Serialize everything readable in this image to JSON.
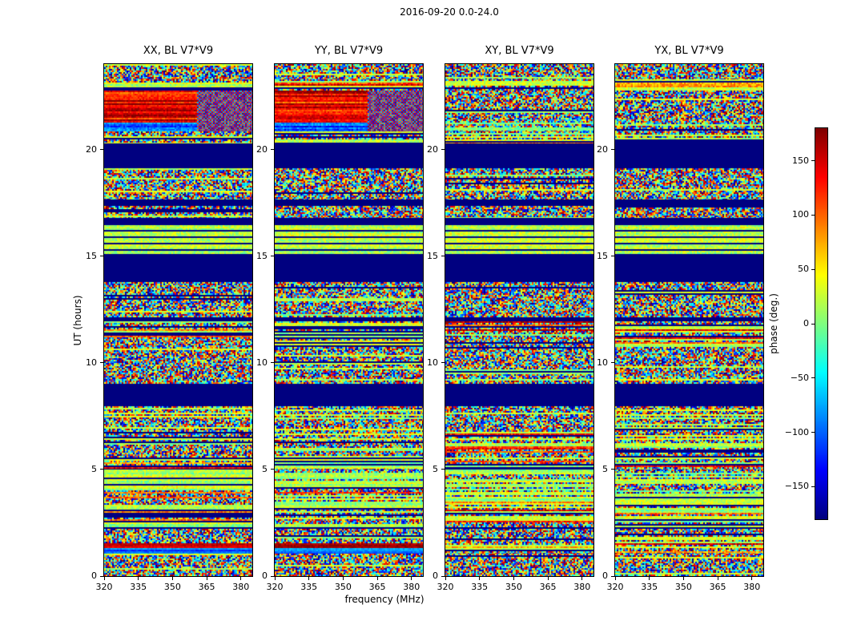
{
  "figure": {
    "title": "2016-09-20 0.0-24.0"
  },
  "chart_data": {
    "type": "heatmap",
    "title": "2016-09-20 0.0-24.0",
    "xlabel": "frequency (MHz)",
    "ylabel": "UT (hours)",
    "x_range_mhz": [
      320,
      385
    ],
    "y_range_hours": [
      0,
      24
    ],
    "x_ticks": [
      320,
      335,
      350,
      365,
      380
    ],
    "y_ticks": [
      0,
      5,
      10,
      15,
      20
    ],
    "panels": [
      {
        "title": "XX, BL V7*V9",
        "band_set": "a"
      },
      {
        "title": "YY, BL V7*V9",
        "band_set": "a"
      },
      {
        "title": "XY, BL V7*V9",
        "band_set": "b"
      },
      {
        "title": "YX, BL V7*V9",
        "band_set": "b"
      }
    ],
    "colorbar": {
      "label": "phase (deg.)",
      "colormap": "jet",
      "range": [
        -180,
        180
      ],
      "ticks": [
        150,
        100,
        50,
        0,
        -50,
        -100,
        -150
      ],
      "tick_labels": [
        "150",
        "100",
        "50",
        "0",
        "−50",
        "−100",
        "−150"
      ]
    },
    "band_sets": {
      "a": [
        {
          "u0": 23.3,
          "u1": 24.0,
          "kind": "noise"
        },
        {
          "u0": 22.75,
          "u1": 23.3,
          "kind": "stripmix"
        },
        {
          "u0": 21.25,
          "u1": 22.75,
          "kind": "hot"
        },
        {
          "u0": 20.85,
          "u1": 21.25,
          "kind": "cold"
        },
        {
          "u0": 20.3,
          "u1": 20.85,
          "kind": "stripmix"
        },
        {
          "u0": 19.1,
          "u1": 20.3,
          "kind": "navy"
        },
        {
          "u0": 17.65,
          "u1": 19.1,
          "kind": "noise"
        },
        {
          "u0": 17.35,
          "u1": 17.65,
          "kind": "navy"
        },
        {
          "u0": 16.8,
          "u1": 17.35,
          "kind": "noise"
        },
        {
          "u0": 16.45,
          "u1": 16.8,
          "kind": "navy"
        },
        {
          "u0": 15.1,
          "u1": 16.45,
          "kind": "green_stripes"
        },
        {
          "u0": 13.8,
          "u1": 15.1,
          "kind": "navy"
        },
        {
          "u0": 12.15,
          "u1": 13.8,
          "kind": "noise"
        },
        {
          "u0": 11.95,
          "u1": 12.15,
          "kind": "navy"
        },
        {
          "u0": 10.8,
          "u1": 11.95,
          "kind": "stripmix"
        },
        {
          "u0": 9.0,
          "u1": 10.8,
          "kind": "noise"
        },
        {
          "u0": 7.95,
          "u1": 9.0,
          "kind": "navy"
        },
        {
          "u0": 6.7,
          "u1": 7.95,
          "kind": "noise"
        },
        {
          "u0": 5.0,
          "u1": 6.7,
          "kind": "stripmix"
        },
        {
          "u0": 2.95,
          "u1": 5.0,
          "kind": "stripmix2"
        },
        {
          "u0": 2.2,
          "u1": 2.95,
          "kind": "stripmix"
        },
        {
          "u0": 1.55,
          "u1": 2.2,
          "kind": "noise"
        },
        {
          "u0": 1.3,
          "u1": 1.55,
          "kind": "hotline"
        },
        {
          "u0": 1.05,
          "u1": 1.3,
          "kind": "coldline"
        },
        {
          "u0": 0.0,
          "u1": 1.05,
          "kind": "noise"
        }
      ],
      "b": [
        {
          "u0": 23.3,
          "u1": 24.0,
          "kind": "noise"
        },
        {
          "u0": 22.75,
          "u1": 23.3,
          "kind": "stripmix"
        },
        {
          "u0": 21.25,
          "u1": 22.75,
          "kind": "noise"
        },
        {
          "u0": 20.85,
          "u1": 21.25,
          "kind": "stripmix"
        },
        {
          "u0": 20.3,
          "u1": 20.85,
          "kind": "stripmix"
        },
        {
          "u0": 19.1,
          "u1": 20.3,
          "kind": "navy"
        },
        {
          "u0": 17.65,
          "u1": 19.1,
          "kind": "noise"
        },
        {
          "u0": 17.35,
          "u1": 17.65,
          "kind": "navy"
        },
        {
          "u0": 16.8,
          "u1": 17.35,
          "kind": "noise"
        },
        {
          "u0": 16.45,
          "u1": 16.8,
          "kind": "navy"
        },
        {
          "u0": 15.1,
          "u1": 16.45,
          "kind": "green_stripes"
        },
        {
          "u0": 13.8,
          "u1": 15.1,
          "kind": "navy"
        },
        {
          "u0": 12.15,
          "u1": 13.8,
          "kind": "noise"
        },
        {
          "u0": 11.95,
          "u1": 12.15,
          "kind": "navy"
        },
        {
          "u0": 10.8,
          "u1": 11.95,
          "kind": "stripmix"
        },
        {
          "u0": 9.0,
          "u1": 10.8,
          "kind": "noise"
        },
        {
          "u0": 7.95,
          "u1": 9.0,
          "kind": "navy"
        },
        {
          "u0": 6.7,
          "u1": 7.95,
          "kind": "noise"
        },
        {
          "u0": 5.0,
          "u1": 6.7,
          "kind": "stripmix"
        },
        {
          "u0": 2.95,
          "u1": 5.0,
          "kind": "stripmix2"
        },
        {
          "u0": 2.2,
          "u1": 2.95,
          "kind": "stripmix"
        },
        {
          "u0": 1.55,
          "u1": 2.2,
          "kind": "noise"
        },
        {
          "u0": 1.3,
          "u1": 1.55,
          "kind": "stripmix"
        },
        {
          "u0": 1.05,
          "u1": 1.3,
          "kind": "stripmix"
        },
        {
          "u0": 0.0,
          "u1": 1.05,
          "kind": "noise"
        }
      ]
    }
  }
}
